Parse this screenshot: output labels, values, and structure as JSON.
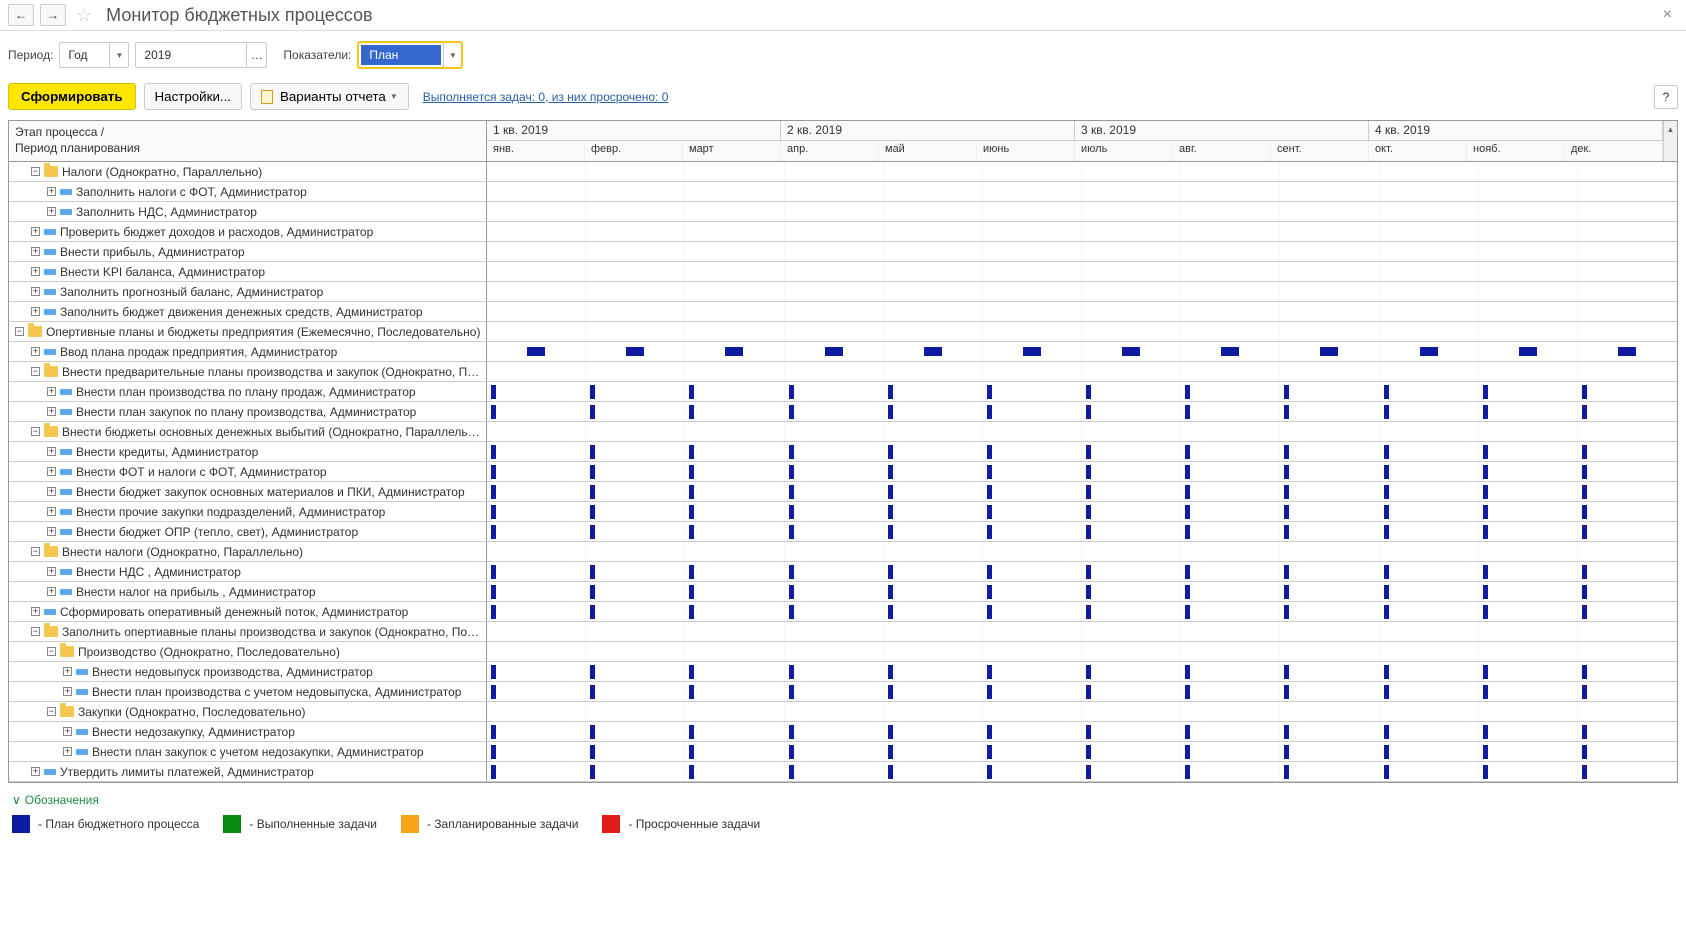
{
  "title": "Монитор бюджетных процессов",
  "filters": {
    "period_label": "Период:",
    "period_value": "Год",
    "year_value": "2019",
    "indicators_label": "Показатели:",
    "indicators_value": "План"
  },
  "actions": {
    "generate": "Сформировать",
    "settings": "Настройки...",
    "variants": "Варианты отчета",
    "tasks_link": "Выполняется задач: 0, из них просрочено: 0"
  },
  "table": {
    "tree_header_l1": "Этап процесса /",
    "tree_header_l2": "Период планирования",
    "quarters": [
      "1 кв. 2019",
      "2 кв. 2019",
      "3 кв. 2019",
      "4 кв. 2019"
    ],
    "months": [
      "янв.",
      "февр.",
      "март",
      "апр.",
      "май",
      "июнь",
      "июль",
      "авг.",
      "сент.",
      "окт.",
      "нояб.",
      "дек."
    ]
  },
  "rows": [
    {
      "indent": 1,
      "exp": "-",
      "icon": "folder",
      "label": "Налоги (Однократно, Параллельно)",
      "bars": []
    },
    {
      "indent": 2,
      "exp": "+",
      "icon": "task",
      "label": "Заполнить налоги с ФОТ, Администратор",
      "bars": []
    },
    {
      "indent": 2,
      "exp": "+",
      "icon": "task",
      "label": "Заполнить НДС, Администратор",
      "bars": []
    },
    {
      "indent": 1,
      "exp": "+",
      "icon": "task",
      "label": "Проверить бюджет доходов и расходов, Администратор",
      "bars": []
    },
    {
      "indent": 1,
      "exp": "+",
      "icon": "task",
      "label": "Внести прибыль, Администратор",
      "bars": []
    },
    {
      "indent": 1,
      "exp": "+",
      "icon": "task",
      "label": "Внести KPI баланса, Администратор",
      "bars": []
    },
    {
      "indent": 1,
      "exp": "+",
      "icon": "task",
      "label": "Заполнить прогнозный баланс, Администратор",
      "bars": []
    },
    {
      "indent": 1,
      "exp": "+",
      "icon": "task",
      "label": "Заполнить бюджет движения денежных средств, Администратор",
      "bars": []
    },
    {
      "indent": 0,
      "exp": "-",
      "icon": "folder",
      "label": "Опертивные планы и бюджеты предприятия (Ежемесячно, Последовательно)",
      "bars": []
    },
    {
      "indent": 1,
      "exp": "+",
      "icon": "task",
      "label": "Ввод плана продаж предприятия, Администратор",
      "bars": [
        1,
        2,
        3,
        4,
        5,
        6,
        7,
        8,
        9,
        10,
        11,
        12
      ],
      "shape": "wide",
      "align": "center"
    },
    {
      "indent": 1,
      "exp": "-",
      "icon": "folder",
      "label": "Внести предварительные планы производства и закупок (Однократно, Посл...",
      "bars": []
    },
    {
      "indent": 2,
      "exp": "+",
      "icon": "task",
      "label": "Внести план производства по плану продаж, Администратор",
      "bars": [
        1,
        2,
        3,
        4,
        5,
        6,
        7,
        8,
        9,
        10,
        11,
        12
      ],
      "shape": "thin",
      "align": "start"
    },
    {
      "indent": 2,
      "exp": "+",
      "icon": "task",
      "label": "Внести план закупок по плану производства, Администратор",
      "bars": [
        1,
        2,
        3,
        4,
        5,
        6,
        7,
        8,
        9,
        10,
        11,
        12
      ],
      "shape": "thin",
      "align": "start"
    },
    {
      "indent": 1,
      "exp": "-",
      "icon": "folder",
      "label": "Внести бюджеты основных денежных выбытий (Однократно, Параллельно)",
      "bars": []
    },
    {
      "indent": 2,
      "exp": "+",
      "icon": "task",
      "label": "Внести кредиты, Администратор",
      "bars": [
        1,
        2,
        3,
        4,
        5,
        6,
        7,
        8,
        9,
        10,
        11,
        12
      ],
      "shape": "thin",
      "align": "start"
    },
    {
      "indent": 2,
      "exp": "+",
      "icon": "task",
      "label": "Внести ФОТ и налоги с ФОТ, Администратор",
      "bars": [
        1,
        2,
        3,
        4,
        5,
        6,
        7,
        8,
        9,
        10,
        11,
        12
      ],
      "shape": "thin",
      "align": "start"
    },
    {
      "indent": 2,
      "exp": "+",
      "icon": "task",
      "label": "Внести бюджет закупок основных материалов и ПКИ, Администратор",
      "bars": [
        1,
        2,
        3,
        4,
        5,
        6,
        7,
        8,
        9,
        10,
        11,
        12
      ],
      "shape": "thin",
      "align": "start"
    },
    {
      "indent": 2,
      "exp": "+",
      "icon": "task",
      "label": "Внести прочие закупки подразделений, Администратор",
      "bars": [
        1,
        2,
        3,
        4,
        5,
        6,
        7,
        8,
        9,
        10,
        11,
        12
      ],
      "shape": "thin",
      "align": "start"
    },
    {
      "indent": 2,
      "exp": "+",
      "icon": "task",
      "label": "Внести бюджет ОПР (тепло, свет), Администратор",
      "bars": [
        1,
        2,
        3,
        4,
        5,
        6,
        7,
        8,
        9,
        10,
        11,
        12
      ],
      "shape": "thin",
      "align": "start"
    },
    {
      "indent": 1,
      "exp": "-",
      "icon": "folder",
      "label": "Внести налоги (Однократно, Параллельно)",
      "bars": []
    },
    {
      "indent": 2,
      "exp": "+",
      "icon": "task",
      "label": "Внести НДС , Администратор",
      "bars": [
        1,
        2,
        3,
        4,
        5,
        6,
        7,
        8,
        9,
        10,
        11,
        12
      ],
      "shape": "thin",
      "align": "start"
    },
    {
      "indent": 2,
      "exp": "+",
      "icon": "task",
      "label": "Внести налог на прибыль , Администратор",
      "bars": [
        1,
        2,
        3,
        4,
        5,
        6,
        7,
        8,
        9,
        10,
        11,
        12
      ],
      "shape": "thin",
      "align": "start"
    },
    {
      "indent": 1,
      "exp": "+",
      "icon": "task",
      "label": "Сформировать оперативный денежный поток, Администратор",
      "bars": [
        1,
        2,
        3,
        4,
        5,
        6,
        7,
        8,
        9,
        10,
        11,
        12
      ],
      "shape": "thin",
      "align": "start"
    },
    {
      "indent": 1,
      "exp": "-",
      "icon": "folder",
      "label": "Заполнить опертиавные планы производства и закупок (Однократно, После...",
      "bars": []
    },
    {
      "indent": 2,
      "exp": "-",
      "icon": "folder",
      "label": "Производство (Однократно, Последовательно)",
      "bars": []
    },
    {
      "indent": 3,
      "exp": "+",
      "icon": "task",
      "label": "Внести недовыпуск производства, Администратор",
      "bars": [
        1,
        2,
        3,
        4,
        5,
        6,
        7,
        8,
        9,
        10,
        11,
        12
      ],
      "shape": "thin",
      "align": "start"
    },
    {
      "indent": 3,
      "exp": "+",
      "icon": "task",
      "label": "Внести план производства с учетом недовыпуска, Администратор",
      "bars": [
        1,
        2,
        3,
        4,
        5,
        6,
        7,
        8,
        9,
        10,
        11,
        12
      ],
      "shape": "thin",
      "align": "start"
    },
    {
      "indent": 2,
      "exp": "-",
      "icon": "folder",
      "label": "Закупки (Однократно, Последовательно)",
      "bars": []
    },
    {
      "indent": 3,
      "exp": "+",
      "icon": "task",
      "label": "Внести недозакупку, Администратор",
      "bars": [
        1,
        2,
        3,
        4,
        5,
        6,
        7,
        8,
        9,
        10,
        11,
        12
      ],
      "shape": "thin",
      "align": "start"
    },
    {
      "indent": 3,
      "exp": "+",
      "icon": "task",
      "label": "Внести план закупок с учетом недозакупки, Администратор",
      "bars": [
        1,
        2,
        3,
        4,
        5,
        6,
        7,
        8,
        9,
        10,
        11,
        12
      ],
      "shape": "thin",
      "align": "start"
    },
    {
      "indent": 1,
      "exp": "+",
      "icon": "task",
      "label": "Утвердить лимиты платежей, Администратор",
      "bars": [
        1,
        2,
        3,
        4,
        5,
        6,
        7,
        8,
        9,
        10,
        11,
        12
      ],
      "shape": "thin",
      "align": "start"
    },
    {
      "indent": 0,
      "exp": "",
      "icon": "",
      "label": "",
      "bars": []
    }
  ],
  "legend": {
    "title": "Обозначения",
    "items": [
      {
        "color": "#0f1c9f",
        "label": "- План бюджетного процесса"
      },
      {
        "color": "#0a8a0d",
        "label": "- Выполненные задачи"
      },
      {
        "color": "#f7a418",
        "label": "- Запланированные задачи"
      },
      {
        "color": "#e21a1a",
        "label": "- Просроченные задачи"
      }
    ]
  },
  "colors": {
    "bar_plan": "#0f1c9f"
  }
}
